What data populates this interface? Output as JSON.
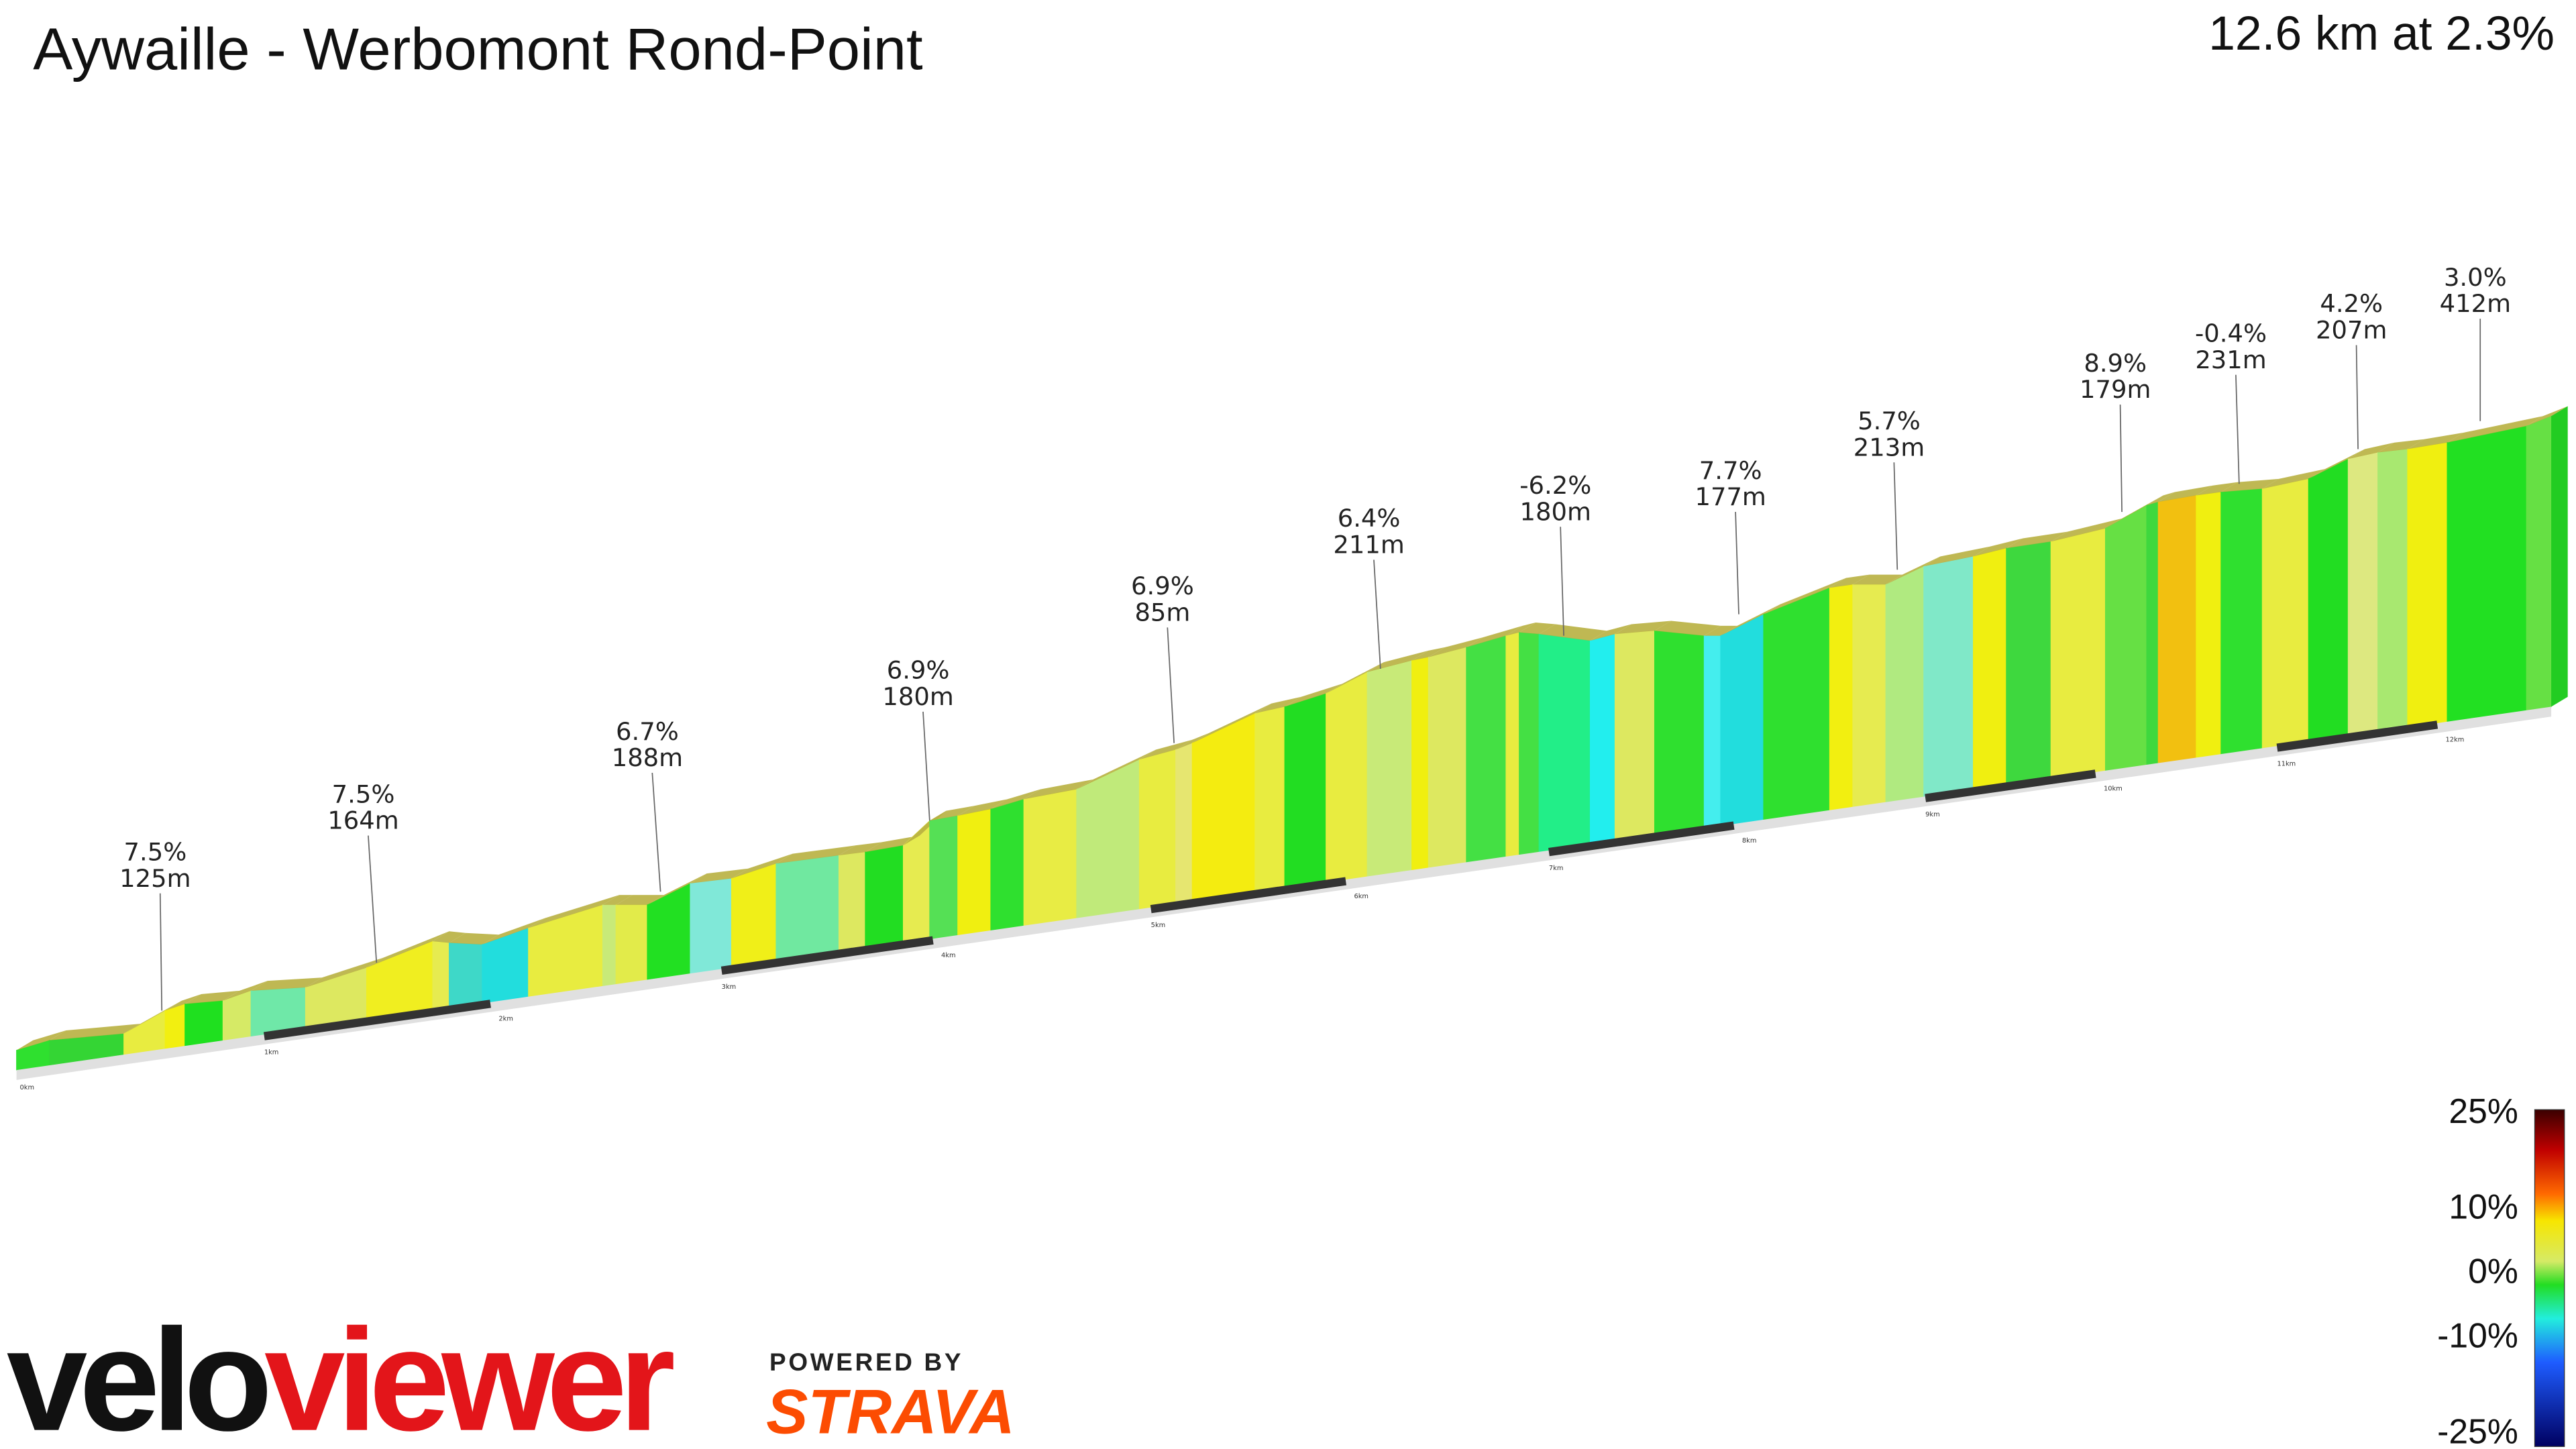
{
  "header": {
    "title": "Aywaille - Werbomont Rond-Point",
    "summary": "12.6 km at 2.3%"
  },
  "annotations": [
    {
      "grade": "7.5%",
      "length": "125m"
    },
    {
      "grade": "7.5%",
      "length": "164m"
    },
    {
      "grade": "6.7%",
      "length": "188m"
    },
    {
      "grade": "6.9%",
      "length": "180m"
    },
    {
      "grade": "6.9%",
      "length": "85m"
    },
    {
      "grade": "6.4%",
      "length": "211m"
    },
    {
      "grade": "-6.2%",
      "length": "180m"
    },
    {
      "grade": "7.7%",
      "length": "177m"
    },
    {
      "grade": "5.7%",
      "length": "213m"
    },
    {
      "grade": "8.9%",
      "length": "179m"
    },
    {
      "grade": "-0.4%",
      "length": "231m"
    },
    {
      "grade": "4.2%",
      "length": "207m"
    },
    {
      "grade": "3.0%",
      "length": "412m"
    }
  ],
  "distance_labels": [
    "0km",
    "1km",
    "2km",
    "3km",
    "4km",
    "5km",
    "6km",
    "7km",
    "8km",
    "9km",
    "10km",
    "11km",
    "12km"
  ],
  "legend": {
    "labels": [
      "25%",
      "10%",
      "0%",
      "-10%",
      "-25%"
    ]
  },
  "branding": {
    "logo_left": "velo",
    "logo_right": "viewer",
    "powered_by": "POWERED BY",
    "partner": "STRAVA"
  }
}
